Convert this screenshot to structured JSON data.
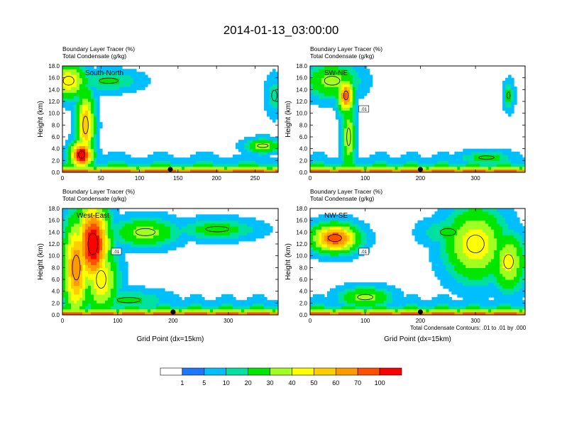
{
  "page_title": "2014-01-13_03:00:00",
  "colors": {
    "levels": [
      "#ffffff",
      "#1e78ff",
      "#00bfff",
      "#00e0a0",
      "#00e600",
      "#a0ff20",
      "#ffff00",
      "#ffcc00",
      "#ff9900",
      "#ff5000",
      "#ff0000"
    ],
    "contour": "#000000",
    "axis": "#000000"
  },
  "chart_data": [
    {
      "type": "heatmap",
      "panel": "top-left",
      "label": "South-North",
      "title_line1": "Boundary Layer Tracer   (%)",
      "title_line2": "Total Condensate   (g/kg)",
      "ylabel": "Height (km)",
      "xlabel": "",
      "xlim": [
        0,
        280
      ],
      "ylim": [
        0,
        18
      ],
      "xticks": [
        0,
        50,
        100,
        150,
        200,
        250
      ],
      "yticks": [
        0,
        2,
        4,
        6,
        8,
        10,
        12,
        14,
        16,
        18
      ],
      "marker_x": 140,
      "plumes": [
        {
          "x": 8,
          "z": 15.5,
          "sx": 20,
          "sz": 2.5,
          "v": 40
        },
        {
          "x": 30,
          "z": 8,
          "sx": 10,
          "sz": 5,
          "v": 50
        },
        {
          "x": 25,
          "z": 3,
          "sx": 12,
          "sz": 2,
          "v": 85
        },
        {
          "x": 60,
          "z": 15.5,
          "sx": 35,
          "sz": 1.5,
          "v": 12
        },
        {
          "x": 260,
          "z": 4.5,
          "sx": 20,
          "sz": 1,
          "v": 25
        },
        {
          "x": 275,
          "z": 13,
          "sx": 10,
          "sz": 3,
          "v": 8
        }
      ]
    },
    {
      "type": "heatmap",
      "panel": "top-right",
      "label": "SW-NE",
      "title_line1": "Boundary Layer Tracer   (%)",
      "title_line2": "Total Condensate   (g/kg)",
      "ylabel": "Height (km)",
      "xlabel": "",
      "xlim": [
        0,
        390
      ],
      "ylim": [
        0,
        18
      ],
      "xticks": [
        0,
        100,
        200,
        300
      ],
      "yticks": [
        0,
        2,
        4,
        6,
        8,
        10,
        12,
        14,
        16,
        18
      ],
      "marker_x": 200,
      "contour_label": ".01",
      "plumes": [
        {
          "x": 65,
          "z": 13,
          "sx": 12,
          "sz": 2.5,
          "v": 65
        },
        {
          "x": 40,
          "z": 15.5,
          "sx": 40,
          "sz": 2.5,
          "v": 25
        },
        {
          "x": 70,
          "z": 6,
          "sx": 10,
          "sz": 5,
          "v": 30
        },
        {
          "x": 360,
          "z": 13,
          "sx": 8,
          "sz": 2,
          "v": 15
        },
        {
          "x": 320,
          "z": 2.5,
          "sx": 40,
          "sz": 1,
          "v": 15
        }
      ]
    },
    {
      "type": "heatmap",
      "panel": "bottom-left",
      "label": "West-East",
      "title_line1": "Boundary Layer Tracer   (%)",
      "title_line2": "Total Condensate   (g/kg)",
      "ylabel": "Height (km)",
      "xlabel": "Grid Point (dx=15km)",
      "xlim": [
        0,
        390
      ],
      "ylim": [
        0,
        18
      ],
      "xticks": [
        0,
        100,
        200,
        300
      ],
      "yticks": [
        0,
        2,
        4,
        6,
        8,
        10,
        12,
        14,
        16,
        18
      ],
      "marker_x": 200,
      "contour_label": ".01",
      "plumes": [
        {
          "x": 55,
          "z": 12,
          "sx": 25,
          "sz": 6,
          "v": 85
        },
        {
          "x": 25,
          "z": 8,
          "sx": 20,
          "sz": 7,
          "v": 60
        },
        {
          "x": 70,
          "z": 6,
          "sx": 25,
          "sz": 5,
          "v": 40
        },
        {
          "x": 150,
          "z": 14,
          "sx": 50,
          "sz": 2,
          "v": 25
        },
        {
          "x": 280,
          "z": 14.5,
          "sx": 60,
          "sz": 1.5,
          "v": 15
        },
        {
          "x": 120,
          "z": 2.5,
          "sx": 60,
          "sz": 1.5,
          "v": 12
        }
      ]
    },
    {
      "type": "heatmap",
      "panel": "bottom-right",
      "label": "NW-SE",
      "title_line1": "Boundary Layer Tracer   (%)",
      "title_line2": "Total Condensate   (g/kg)",
      "ylabel": "Height (km)",
      "xlabel": "Grid Point (dx=15km)",
      "xlim": [
        0,
        390
      ],
      "ylim": [
        0,
        18
      ],
      "xticks": [
        0,
        100,
        200,
        300
      ],
      "yticks": [
        0,
        2,
        4,
        6,
        8,
        10,
        12,
        14,
        16,
        18
      ],
      "marker_x": 200,
      "contour_label": ".01",
      "footnote": "Total Condensate Contours: .01 to .01 by .000",
      "plumes": [
        {
          "x": 45,
          "z": 13,
          "sx": 35,
          "sz": 2,
          "v": 70
        },
        {
          "x": 300,
          "z": 12,
          "sx": 45,
          "sz": 5,
          "v": 40
        },
        {
          "x": 360,
          "z": 9,
          "sx": 25,
          "sz": 4,
          "v": 35
        },
        {
          "x": 250,
          "z": 14,
          "sx": 40,
          "sz": 2,
          "v": 12
        },
        {
          "x": 100,
          "z": 3,
          "sx": 40,
          "sz": 1.5,
          "v": 25
        }
      ]
    }
  ],
  "colorbar": {
    "labels": [
      "1",
      "5",
      "10",
      "20",
      "30",
      "40",
      "50",
      "60",
      "70",
      "100"
    ],
    "values": [
      0,
      1,
      5,
      10,
      20,
      30,
      40,
      50,
      60,
      70,
      100
    ]
  }
}
